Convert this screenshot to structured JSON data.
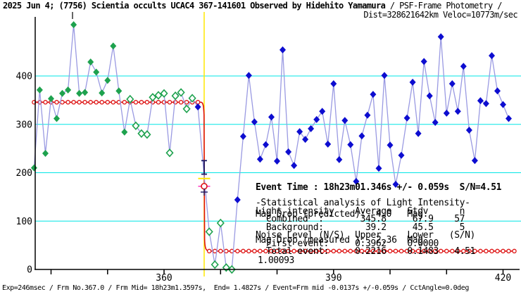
{
  "header": {
    "title_bold": "2025 Jun 4; (7756) Scientia occults UCAC4 367-141601 Observed by Hidehito Yamamura",
    "title_normal": " / PSF-Frame Photometry /",
    "dist_veloc": "Dist=328621642km Veloc=10773m/sec"
  },
  "event_block": {
    "line1": "Event Time : 18h23m01.346s +/- 0.059s  S/N=4.51",
    "line2": "Mag Drop (predicted):  4.0   Mag.",
    "line3": "Mag Drop (measured ):  2.36  Mag."
  },
  "stats_block": {
    "lines": [
      "-Statistical analysis of Light Intensity-",
      "Light intensity    Average   Stdv      n",
      "  Combined  :       345.8     67.9    57",
      "  Background:        39.2     45.5     5",
      "Noise Level (N/S)  Upper     Lower   (S/N)",
      "  First event:     0.3962    0.0000",
      "  Total event:     0.2216    0.1483   4.51"
    ]
  },
  "extra_value": "1.00093",
  "footer": {
    "text": "Exp=246msec / Frm No.367.0 / Frm Mid= 18h23m1.3597s,  End= 1.4827s / Event=Frm mid -0.0137s +/-0.059s / CctAngle=0.0deg"
  },
  "colors": {
    "grid": "#00e6e6",
    "curve": "#9a9ae2",
    "green": "#1ea24e",
    "blue": "#0d0dd0",
    "model": "#dd1111",
    "event_line": "#ffe800",
    "marker_navy": "#1a1a66",
    "marker_magenta": "#ff33bb",
    "axis": "#000000",
    "frame_mid_tick": "#333333"
  },
  "chart_data": {
    "type": "line",
    "x_tick_labels": [
      360,
      390,
      420
    ],
    "x_minor_ticks": [
      340,
      350,
      360,
      370,
      380,
      390,
      400,
      410,
      420
    ],
    "y_ticks": [
      0,
      100,
      200,
      300,
      400
    ],
    "xlim": [
      336.5,
      423
    ],
    "ylim": [
      0,
      516
    ],
    "grid": true,
    "legend": false,
    "frame_mid_tick": 343.8,
    "event_line_frame": 367.1,
    "model": {
      "level_before": 345.8,
      "level_after": 38,
      "drop_frame": 367.1
    },
    "event_marker": {
      "value": 172,
      "error_bar_values": [
        197,
        225
      ],
      "yellow_tick_value": 188,
      "magenta_tick_value": 172,
      "cross_value": 160
    },
    "point_types": {
      "g": "pre-event green filled diamond",
      "o": "low-weight green open diamond",
      "b": "post/near-event blue filled diamond"
    },
    "points": [
      [
        337,
        210,
        "g"
      ],
      [
        338,
        371,
        "g"
      ],
      [
        339,
        240,
        "g"
      ],
      [
        340,
        353,
        "g"
      ],
      [
        341,
        312,
        "g"
      ],
      [
        342,
        364,
        "g"
      ],
      [
        343,
        371,
        "g"
      ],
      [
        344,
        506,
        "g"
      ],
      [
        345,
        364,
        "g"
      ],
      [
        346,
        366,
        "g"
      ],
      [
        347,
        429,
        "g"
      ],
      [
        348,
        408,
        "g"
      ],
      [
        349,
        365,
        "g"
      ],
      [
        350,
        391,
        "g"
      ],
      [
        351,
        462,
        "g"
      ],
      [
        352,
        369,
        "g"
      ],
      [
        353,
        284,
        "g"
      ],
      [
        354,
        352,
        "o"
      ],
      [
        355,
        297,
        "o"
      ],
      [
        356,
        281,
        "o"
      ],
      [
        357,
        279,
        "o"
      ],
      [
        358,
        356,
        "o"
      ],
      [
        359,
        360,
        "o"
      ],
      [
        360,
        364,
        "o"
      ],
      [
        361,
        241,
        "o"
      ],
      [
        362,
        359,
        "o"
      ],
      [
        363,
        366,
        "o"
      ],
      [
        364,
        332,
        "o"
      ],
      [
        365,
        354,
        "o"
      ],
      [
        366,
        336,
        "b"
      ],
      [
        368,
        78,
        "o"
      ],
      [
        369,
        10,
        "o"
      ],
      [
        370,
        96,
        "o"
      ],
      [
        371,
        4,
        "o"
      ],
      [
        372,
        0,
        "o"
      ],
      [
        373,
        144,
        "b"
      ],
      [
        374,
        275,
        "b"
      ],
      [
        375,
        401,
        "b"
      ],
      [
        376,
        305,
        "b"
      ],
      [
        377,
        228,
        "b"
      ],
      [
        378,
        258,
        "b"
      ],
      [
        379,
        315,
        "b"
      ],
      [
        380,
        224,
        "b"
      ],
      [
        381,
        454,
        "b"
      ],
      [
        382,
        243,
        "b"
      ],
      [
        383,
        215,
        "b"
      ],
      [
        384,
        285,
        "b"
      ],
      [
        385,
        269,
        "b"
      ],
      [
        386,
        291,
        "b"
      ],
      [
        387,
        310,
        "b"
      ],
      [
        388,
        327,
        "b"
      ],
      [
        389,
        259,
        "b"
      ],
      [
        390,
        384,
        "b"
      ],
      [
        391,
        227,
        "b"
      ],
      [
        392,
        308,
        "b"
      ],
      [
        393,
        258,
        "b"
      ],
      [
        394,
        182,
        "b"
      ],
      [
        395,
        276,
        "b"
      ],
      [
        396,
        319,
        "b"
      ],
      [
        397,
        362,
        "b"
      ],
      [
        398,
        209,
        "b"
      ],
      [
        399,
        401,
        "b"
      ],
      [
        400,
        257,
        "b"
      ],
      [
        401,
        176,
        "b"
      ],
      [
        402,
        236,
        "b"
      ],
      [
        403,
        313,
        "b"
      ],
      [
        404,
        387,
        "b"
      ],
      [
        405,
        281,
        "b"
      ],
      [
        406,
        430,
        "b"
      ],
      [
        407,
        359,
        "b"
      ],
      [
        408,
        304,
        "b"
      ],
      [
        409,
        481,
        "b"
      ],
      [
        410,
        323,
        "b"
      ],
      [
        411,
        384,
        "b"
      ],
      [
        412,
        327,
        "b"
      ],
      [
        413,
        420,
        "b"
      ],
      [
        414,
        288,
        "b"
      ],
      [
        415,
        225,
        "b"
      ],
      [
        416,
        349,
        "b"
      ],
      [
        417,
        343,
        "b"
      ],
      [
        418,
        442,
        "b"
      ],
      [
        419,
        369,
        "b"
      ],
      [
        420,
        341,
        "b"
      ],
      [
        421,
        312,
        "b"
      ]
    ]
  }
}
